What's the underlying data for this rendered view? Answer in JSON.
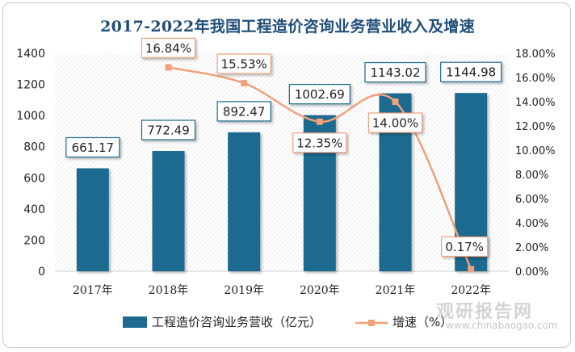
{
  "chart_data": {
    "type": "bar+line",
    "title": "2017-2022年我国工程造价咨询业务营业收入及增速",
    "categories": [
      "2017年",
      "2018年",
      "2019年",
      "2020年",
      "2021年",
      "2022年"
    ],
    "series": [
      {
        "name": "工程造价咨询业务营收（亿元）",
        "type": "bar",
        "axis": "left",
        "values": [
          661.17,
          772.49,
          892.47,
          1002.69,
          1143.02,
          1144.98
        ],
        "labels": [
          "661.17",
          "772.49",
          "892.47",
          "1002.69",
          "1143.02",
          "1144.98"
        ],
        "color": "#1f6b8f"
      },
      {
        "name": "增速（%）",
        "type": "line",
        "axis": "right",
        "values": [
          null,
          16.84,
          15.53,
          12.35,
          14.0,
          0.17
        ],
        "labels": [
          "",
          "16.84%",
          "15.53%",
          "12.35%",
          "14.00%",
          "0.17%"
        ],
        "color": "#f0a07a"
      }
    ],
    "y_left": {
      "min": 0,
      "max": 1400,
      "ticks": [
        "0",
        "200",
        "400",
        "600",
        "800",
        "1000",
        "1200",
        "1400"
      ]
    },
    "y_right": {
      "min": 0,
      "max": 18,
      "ticks": [
        "0.00%",
        "2.00%",
        "4.00%",
        "6.00%",
        "8.00%",
        "10.00%",
        "12.00%",
        "14.00%",
        "16.00%",
        "18.00%"
      ]
    },
    "grid": false,
    "legend_position": "bottom"
  },
  "watermark": {
    "main": "观研报告网",
    "url": "www.chinabaogao.com"
  }
}
